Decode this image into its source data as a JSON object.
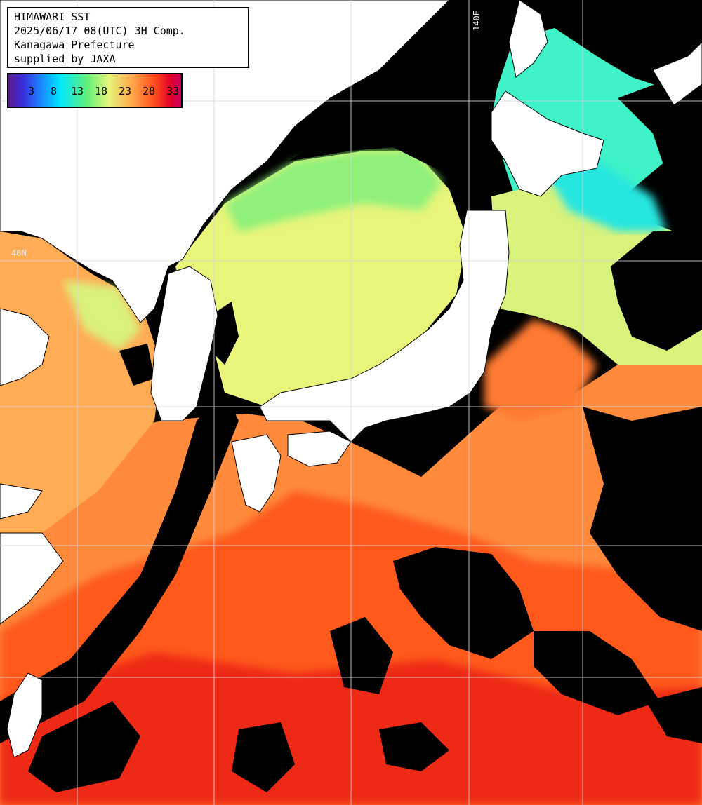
{
  "header": {
    "line1": "HIMAWARI SST",
    "line2": "2025/06/17 08(UTC) 3H Comp.",
    "line3": "Kanagawa Prefecture",
    "line4": "supplied by JAXA"
  },
  "colorbar": {
    "ticks": [
      "3",
      "8",
      "13",
      "18",
      "23",
      "28",
      "33"
    ]
  },
  "grid": {
    "lon_label": "140E",
    "lat_label": "40N"
  },
  "colors": {
    "land": "#ffffff",
    "cloud": "#000000",
    "grid": "#cfcfcf",
    "cold": "#00e6ff",
    "cool": "#7ef07a",
    "mild": "#e8f57a",
    "warm": "#ffa04a",
    "hot": "#ff5a1f",
    "hotter": "#ee2a12"
  }
}
